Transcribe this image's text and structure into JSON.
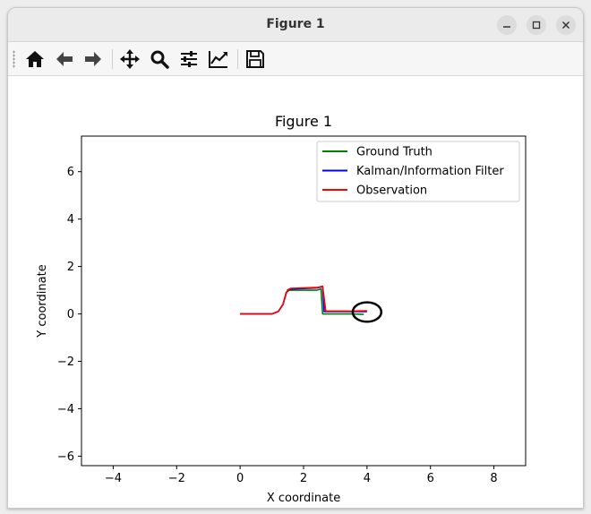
{
  "window": {
    "title": "Figure 1"
  },
  "toolbar": {
    "buttons": [
      {
        "icon": "home-icon"
      },
      {
        "icon": "back-arrow-icon"
      },
      {
        "icon": "forward-arrow-icon"
      },
      {
        "icon": "pan-icon"
      },
      {
        "icon": "zoom-icon"
      },
      {
        "icon": "configure-subplots-icon"
      },
      {
        "icon": "edit-axis-icon"
      },
      {
        "icon": "save-icon"
      }
    ]
  },
  "colors": {
    "ground_truth": "#008000",
    "kalman": "#0000ff",
    "observation": "#ff0000",
    "marker": "#000000"
  },
  "chart_data": {
    "type": "line",
    "title": "Figure 1",
    "xlabel": "X coordinate",
    "ylabel": "Y coordinate",
    "xlim": [
      -5,
      9
    ],
    "ylim": [
      -6.4,
      7.5
    ],
    "xticks": [
      -4,
      -2,
      0,
      2,
      4,
      6,
      8
    ],
    "xtick_labels": [
      "−4",
      "−2",
      "0",
      "2",
      "4",
      "6",
      "8"
    ],
    "yticks": [
      -6,
      -4,
      -2,
      0,
      2,
      4,
      6
    ],
    "ytick_labels": [
      "−6",
      "−4",
      "−2",
      "0",
      "2",
      "4",
      "6"
    ],
    "legend_position": "top-right",
    "series": [
      {
        "name": "Ground Truth",
        "color": "#008000",
        "x": [
          0,
          1.0,
          1.2,
          1.35,
          1.45,
          1.5,
          1.55,
          2.4,
          2.55,
          2.6,
          3.0,
          3.5,
          3.9
        ],
        "y": [
          0,
          0,
          0.1,
          0.4,
          0.9,
          0.95,
          1.0,
          1.0,
          1.05,
          0,
          0,
          0,
          -0.02
        ]
      },
      {
        "name": "Kalman/Information Filter",
        "color": "#0000ff",
        "x": [
          0,
          1.0,
          1.2,
          1.35,
          1.45,
          1.5,
          1.6,
          2.45,
          2.6,
          2.65,
          3.0,
          3.5,
          4.0
        ],
        "y": [
          0,
          0,
          0.1,
          0.4,
          0.85,
          1.0,
          1.05,
          1.1,
          1.15,
          0.1,
          0.1,
          0.1,
          0.1
        ]
      },
      {
        "name": "Observation",
        "color": "#ff0000",
        "x": [
          0,
          1.0,
          1.2,
          1.35,
          1.45,
          1.5,
          1.6,
          2.45,
          2.6,
          2.7,
          3.0,
          3.5,
          4.0
        ],
        "y": [
          0,
          0,
          0.1,
          0.4,
          0.85,
          1.02,
          1.08,
          1.12,
          1.17,
          0.12,
          0.12,
          0.12,
          0.13
        ]
      }
    ],
    "marker": {
      "shape": "ellipse",
      "center": [
        4.0,
        0.08
      ],
      "width": 0.9,
      "height": 0.82
    }
  }
}
